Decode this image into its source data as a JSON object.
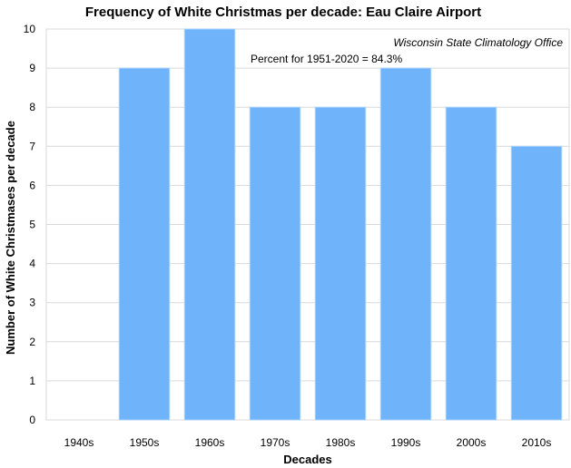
{
  "chart_data": {
    "type": "bar",
    "title": "Frequency of White Christmas per decade: Eau Claire Airport",
    "xlabel": "Decades",
    "ylabel": "Number  of White Christmases per decade",
    "categories": [
      "1940s",
      "1950s",
      "1960s",
      "1970s",
      "1980s",
      "1990s",
      "2000s",
      "2010s"
    ],
    "values": [
      0,
      9,
      10,
      8,
      8,
      9,
      8,
      7
    ],
    "ylim": [
      0,
      10
    ],
    "yticks": [
      "0",
      "1",
      "2",
      "3",
      "4",
      "5",
      "6",
      "7",
      "8",
      "9",
      "10"
    ],
    "grid": true,
    "legend": "none",
    "bar_color": "#6fb4fb",
    "annotations": {
      "source": "Wisconsin State Climatology Office",
      "percent": "Percent for 1951-2020 = 84.3%"
    }
  }
}
